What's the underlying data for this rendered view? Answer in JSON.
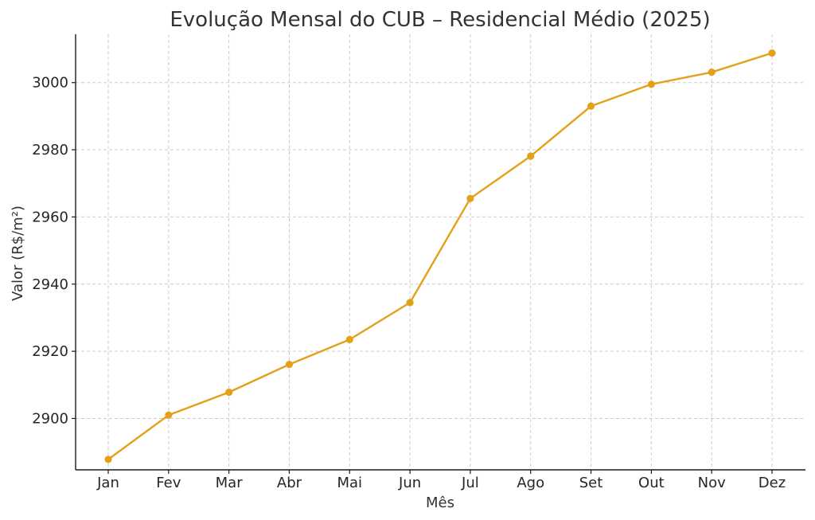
{
  "chart_data": {
    "type": "line",
    "title": "Evolução Mensal do CUB – Residencial Médio (2025)",
    "xlabel": "Mês",
    "ylabel": "Valor (R$/m²)",
    "categories": [
      "Jan",
      "Fev",
      "Mar",
      "Abr",
      "Mai",
      "Jun",
      "Jul",
      "Ago",
      "Set",
      "Out",
      "Nov",
      "Dez"
    ],
    "series": [
      {
        "values": [
          2887.8,
          2901.0,
          2907.8,
          2916.1,
          2923.5,
          2934.5,
          2965.5,
          2978.1,
          2993.0,
          2999.5,
          3003.1,
          3008.8
        ],
        "color": "#E3A11A"
      }
    ],
    "yticks": [
      2900,
      2920,
      2940,
      2960,
      2980,
      3000
    ],
    "ylim": [
      2884.7,
      3014.4
    ],
    "grid": true,
    "legend": "none"
  }
}
